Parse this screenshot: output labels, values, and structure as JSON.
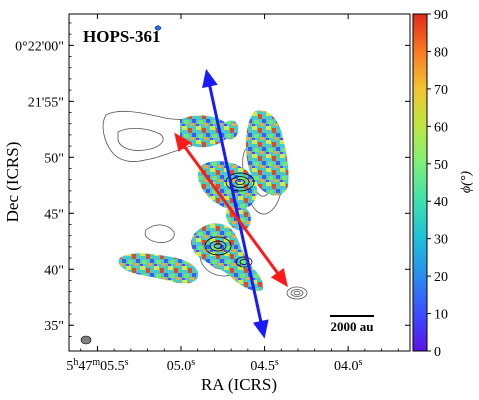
{
  "chart_data": {
    "type": "heatmap",
    "title": "HOPS-361",
    "xlabel": "RA (ICRS)",
    "ylabel": "Dec (ICRS)",
    "x_ticks": [
      {
        "pre": "5",
        "sup1": "h",
        "mid": "47",
        "sup2": "m",
        "main": "05.5",
        "sup3": "s"
      },
      {
        "pre": "",
        "sup1": "",
        "mid": "",
        "sup2": "",
        "main": "05.0",
        "sup3": "s"
      },
      {
        "pre": "",
        "sup1": "",
        "mid": "",
        "sup2": "",
        "main": "04.5",
        "sup3": "s"
      },
      {
        "pre": "",
        "sup1": "",
        "mid": "",
        "sup2": "",
        "main": "04.0",
        "sup3": "s"
      }
    ],
    "x_tick_values_s": [
      5.5,
      5.0,
      4.5,
      4.0
    ],
    "xlim_s": [
      5.67,
      3.63
    ],
    "y_ticks": [
      "0°22'00\"",
      "21'55\"",
      "50\"",
      "45\"",
      "40\"",
      "35\""
    ],
    "y_tick_values_arcsec": [
      60,
      55,
      50,
      45,
      40,
      35
    ],
    "ylim_arcsec": [
      32.7,
      62.8
    ],
    "colorbar": {
      "label": "ϕ(°)",
      "ticks": [
        "0",
        "10",
        "20",
        "30",
        "40",
        "50",
        "60",
        "70",
        "80",
        "90"
      ],
      "min": 0,
      "max": 90,
      "colors": [
        "#5b12e6",
        "#3a4dff",
        "#2a8cf0",
        "#1fbfd8",
        "#3ee0b0",
        "#7cef7a",
        "#bde742",
        "#f1c431",
        "#f97a22",
        "#e02a1a"
      ]
    },
    "scale_bar": {
      "label": "2000 au"
    },
    "arrows": [
      {
        "name": "blue",
        "color": "#1a1aff",
        "from": [
          4.85,
          57.9
        ],
        "to": [
          4.5,
          33.8
        ]
      },
      {
        "name": "red",
        "color": "#ff1a1a",
        "from": [
          5.04,
          52.2
        ],
        "to": [
          4.36,
          38.4
        ]
      }
    ]
  }
}
